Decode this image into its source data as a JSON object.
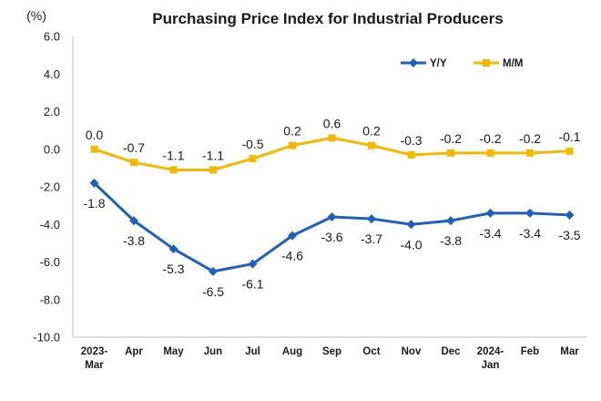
{
  "chart_data": {
    "type": "line",
    "title": "Purchasing Price Index for Industrial Producers",
    "unit_label": "(%)",
    "categories": [
      [
        "2023-",
        "Mar"
      ],
      [
        "Apr"
      ],
      [
        "May"
      ],
      [
        "Jun"
      ],
      [
        "Jul"
      ],
      [
        "Aug"
      ],
      [
        "Sep"
      ],
      [
        "Oct"
      ],
      [
        "Nov"
      ],
      [
        "Dec"
      ],
      [
        "2024-",
        "Jan"
      ],
      [
        "Feb"
      ],
      [
        "Mar"
      ]
    ],
    "y_ticks": [
      "6.0",
      "4.0",
      "2.0",
      "0.0",
      "-2.0",
      "-4.0",
      "-6.0",
      "-8.0",
      "-10.0"
    ],
    "ylim": [
      -10,
      6
    ],
    "grid": false,
    "legend_position": "top-right",
    "series": [
      {
        "name": "Y/Y",
        "color": "#1f5fbf",
        "marker": "diamond",
        "values": [
          -1.8,
          -3.8,
          -5.3,
          -6.5,
          -6.1,
          -4.6,
          -3.6,
          -3.7,
          -4.0,
          -3.8,
          -3.4,
          -3.4,
          -3.5
        ],
        "labels": [
          "-1.8",
          "-3.8",
          "-5.3",
          "-6.5",
          "-6.1",
          "-4.6",
          "-3.6",
          "-3.7",
          "-4.0",
          "-3.8",
          "-3.4",
          "-3.4",
          "-3.5"
        ]
      },
      {
        "name": "M/M",
        "color": "#f5b800",
        "marker": "square",
        "values": [
          0.0,
          -0.7,
          -1.1,
          -1.1,
          -0.5,
          0.2,
          0.6,
          0.2,
          -0.3,
          -0.2,
          -0.2,
          -0.2,
          -0.1
        ],
        "labels": [
          "0.0",
          "-0.7",
          "-1.1",
          "-1.1",
          "-0.5",
          "0.2",
          "0.6",
          "0.2",
          "-0.3",
          "-0.2",
          "-0.2",
          "-0.2",
          "-0.1"
        ]
      }
    ]
  }
}
